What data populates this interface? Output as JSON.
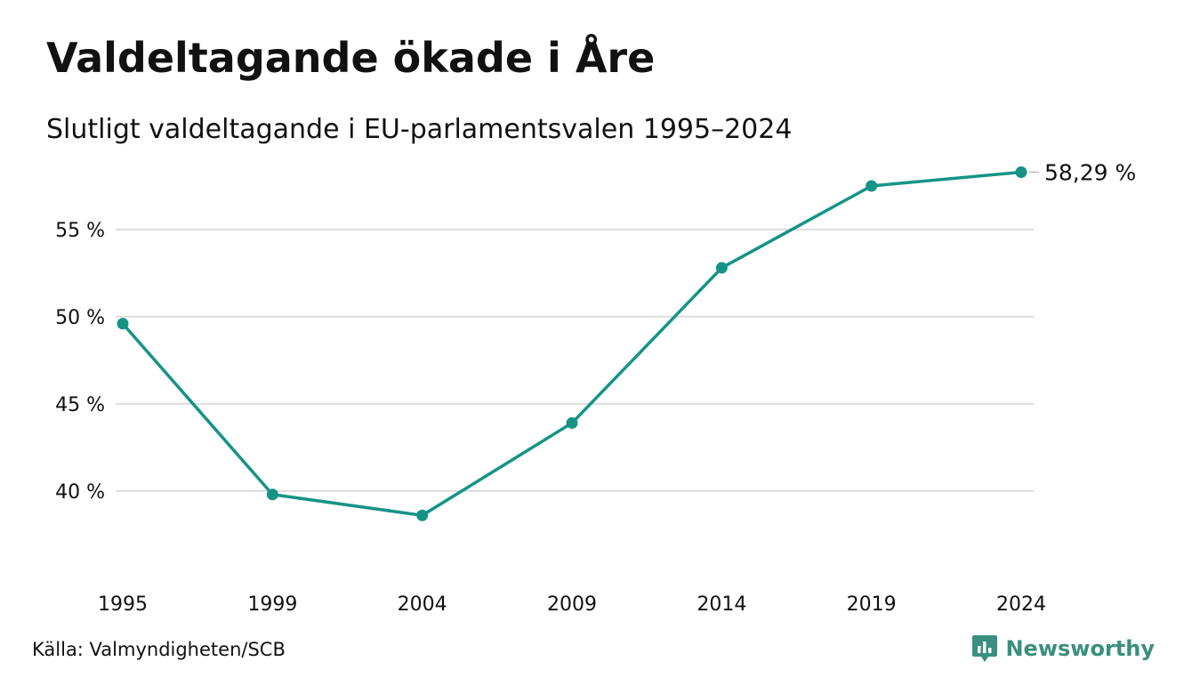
{
  "title": "Valdeltagande ökade i Åre",
  "subtitle": "Slutligt valdeltagande i EU-parlamentsvalen 1995–2024",
  "source": "Källa: Valmyndigheten/SCB",
  "brand": {
    "name": "Newsworthy",
    "color": "#3a8f7e",
    "icon": "newsworthy-logo-icon"
  },
  "colors": {
    "line": "#159486",
    "grid": "#dddddd"
  },
  "chart_data": {
    "type": "line",
    "title": "Valdeltagande ökade i Åre",
    "subtitle": "Slutligt valdeltagande i EU-parlamentsvalen 1995–2024",
    "xlabel": "",
    "ylabel": "",
    "categories": [
      "1995",
      "1999",
      "2004",
      "2009",
      "2014",
      "2019",
      "2024"
    ],
    "series": [
      {
        "values": [
          49.6,
          39.8,
          38.6,
          43.9,
          52.8,
          57.5,
          58.29
        ]
      }
    ],
    "yticks": [
      40,
      45,
      50,
      55
    ],
    "ytick_labels": [
      "40 %",
      "45 %",
      "50 %",
      "55 %"
    ],
    "ylim": [
      35.5,
      60
    ],
    "grid": true,
    "legend": "none",
    "end_label": "58,29 %"
  }
}
